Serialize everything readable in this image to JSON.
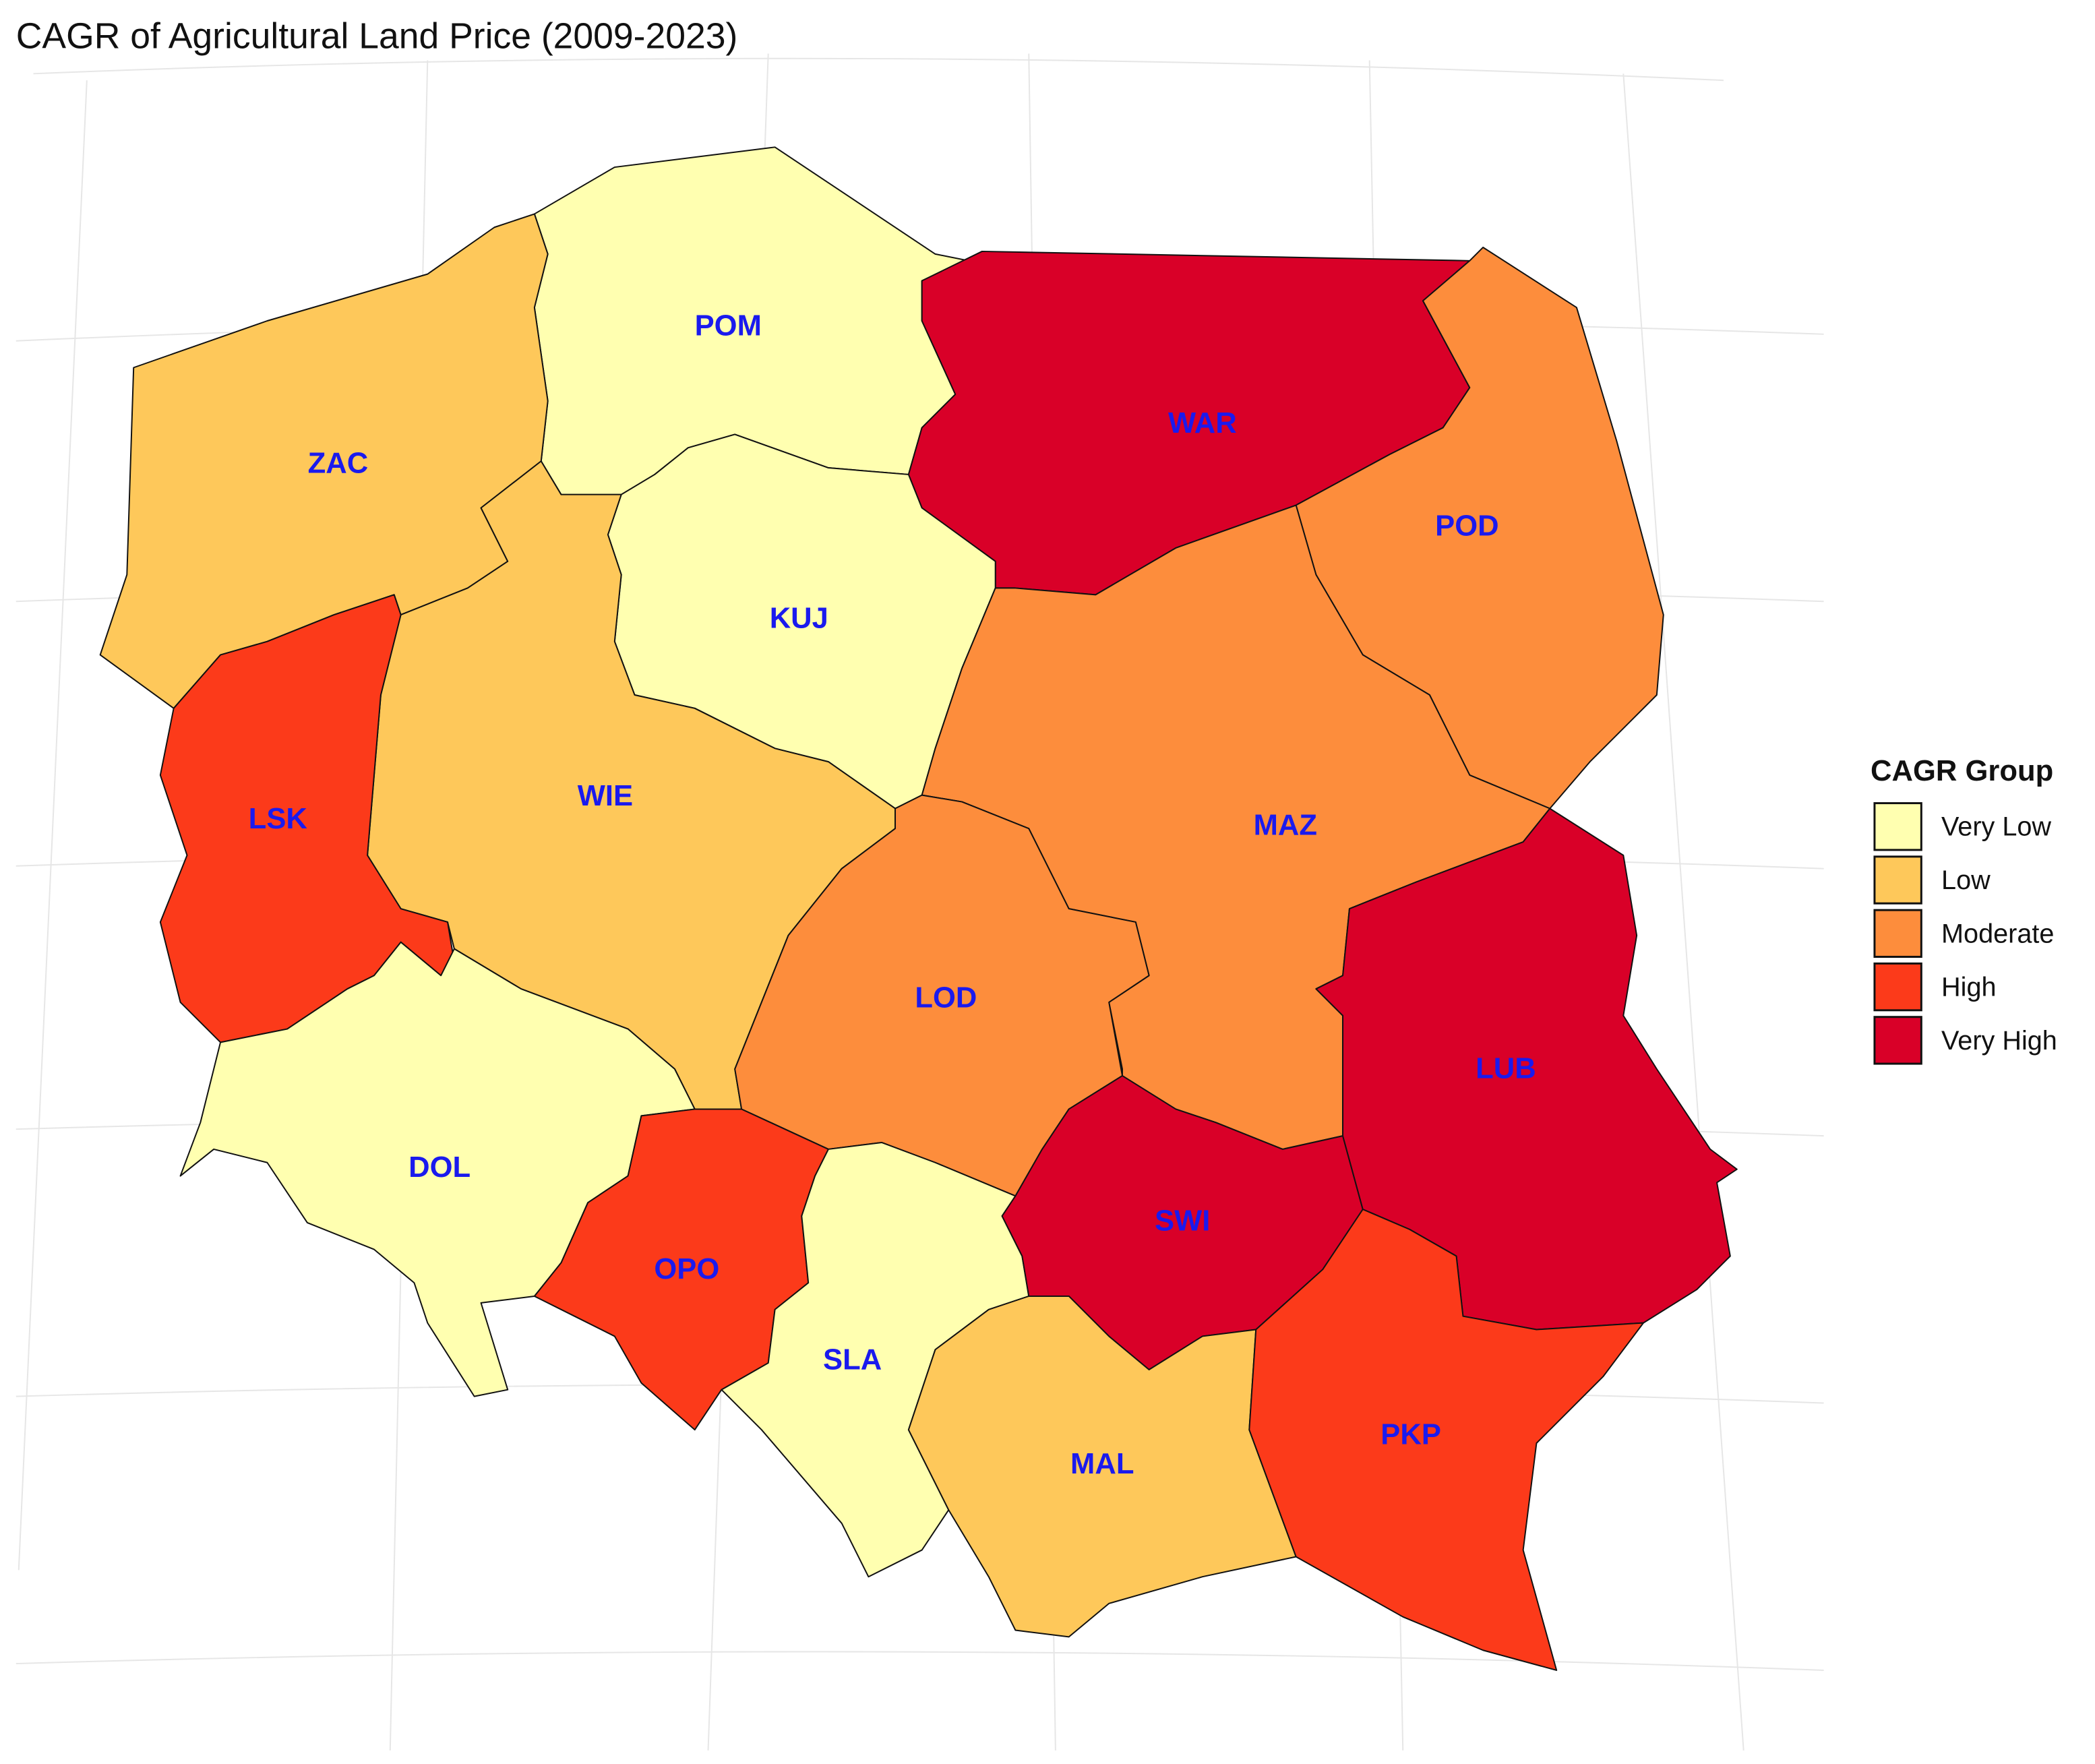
{
  "title": "CAGR of Agricultural Land Price (2009-2023)",
  "legend": {
    "title": "CAGR Group",
    "groups": [
      {
        "label": "Very Low",
        "color": "#ffffb0"
      },
      {
        "label": "Low",
        "color": "#fec85a"
      },
      {
        "label": "Moderate",
        "color": "#fd8d3c"
      },
      {
        "label": "High",
        "color": "#fc3a1a"
      },
      {
        "label": "Very High",
        "color": "#d90028"
      }
    ]
  },
  "regions": [
    {
      "label": "POM",
      "color": "#ffffb0"
    },
    {
      "label": "WAR",
      "color": "#d90028"
    },
    {
      "label": "POD",
      "color": "#fd8d3c"
    },
    {
      "label": "ZAC",
      "color": "#fec85a"
    },
    {
      "label": "KUJ",
      "color": "#ffffb0"
    },
    {
      "label": "WIE",
      "color": "#fec85a"
    },
    {
      "label": "LSK",
      "color": "#fc3a1a"
    },
    {
      "label": "MAZ",
      "color": "#fd8d3c"
    },
    {
      "label": "LOD",
      "color": "#fd8d3c"
    },
    {
      "label": "DOL",
      "color": "#ffffb0"
    },
    {
      "label": "OPO",
      "color": "#fc3a1a"
    },
    {
      "label": "SLA",
      "color": "#ffffb0"
    },
    {
      "label": "SWI",
      "color": "#d90028"
    },
    {
      "label": "LUB",
      "color": "#d90028"
    },
    {
      "label": "MAL",
      "color": "#fec85a"
    },
    {
      "label": "PKP",
      "color": "#fc3a1a"
    }
  ]
}
